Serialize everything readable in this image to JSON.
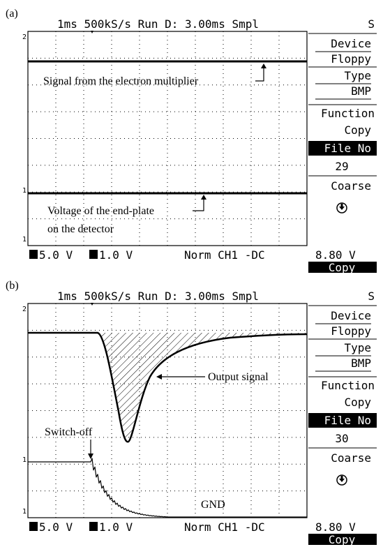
{
  "panels": [
    {
      "label": "(a)",
      "header": "1ms  500kS/s Run D: 3.00ms Smpl",
      "header_right": "S",
      "markers": [
        "2",
        "1",
        "1"
      ],
      "menu": [
        "Device",
        "Floppy",
        "Type",
        "BMP",
        "Function",
        "Copy",
        "File No",
        "29",
        "Coarse"
      ],
      "footer": {
        "ch1": "5.0 V",
        "ch2": "1.0 V",
        "trigger": "Norm CH1 -DC",
        "level": "8.80 V",
        "action": "Copy"
      },
      "annotations": [
        "Signal from the electron multiplier",
        "Voltage of the end-plate",
        "on the detector"
      ]
    },
    {
      "label": "(b)",
      "header": "1ms  500kS/s Run D: 3.00ms Smpl",
      "header_right": "S",
      "markers": [
        "2",
        "1",
        "1"
      ],
      "menu": [
        "Device",
        "Floppy",
        "Type",
        "BMP",
        "Function",
        "Copy",
        "File No",
        "30",
        "Coarse"
      ],
      "footer": {
        "ch1": "5.0 V",
        "ch2": "1.0 V",
        "trigger": "Norm CH1 -DC",
        "level": "8.80 V",
        "action": "Copy"
      },
      "annotations": [
        "Output signal",
        "Switch-off",
        "GND"
      ]
    }
  ]
}
